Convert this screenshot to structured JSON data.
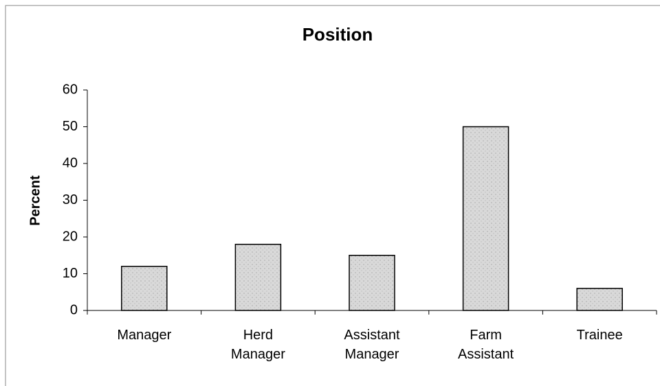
{
  "chart_data": {
    "type": "bar",
    "title": "Position",
    "y_label": "Percent",
    "categories": [
      "Manager",
      "Herd Manager",
      "Assistant Manager",
      "Farm Assistant",
      "Trainee"
    ],
    "values": [
      12,
      18,
      15,
      50,
      6
    ],
    "color": "#d6d6d6",
    "ylim": [
      0,
      60
    ],
    "yticks": [
      0,
      10,
      20,
      30,
      40,
      50,
      60
    ],
    "grid": false
  }
}
